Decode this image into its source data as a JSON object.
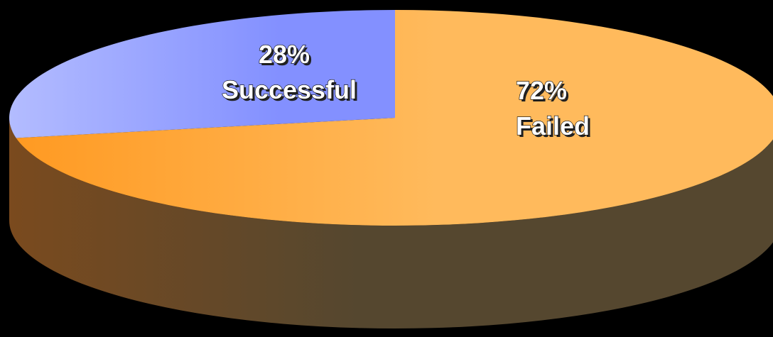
{
  "chart_data": {
    "type": "pie",
    "style": "3d",
    "categories": [
      "Successful",
      "Failed"
    ],
    "values": [
      28,
      72
    ],
    "labels": [
      {
        "percent": "28%",
        "name": "Successful"
      },
      {
        "percent": "72%",
        "name": "Failed"
      }
    ],
    "colors": {
      "successful_top": "#8390ff",
      "successful_light": "#b3bcff",
      "failed_top": "#ffba5c",
      "failed_dark": "#ff9a22",
      "side_light": "#7a4a1e",
      "side_dark": "#55472f",
      "background": "#000000"
    }
  }
}
